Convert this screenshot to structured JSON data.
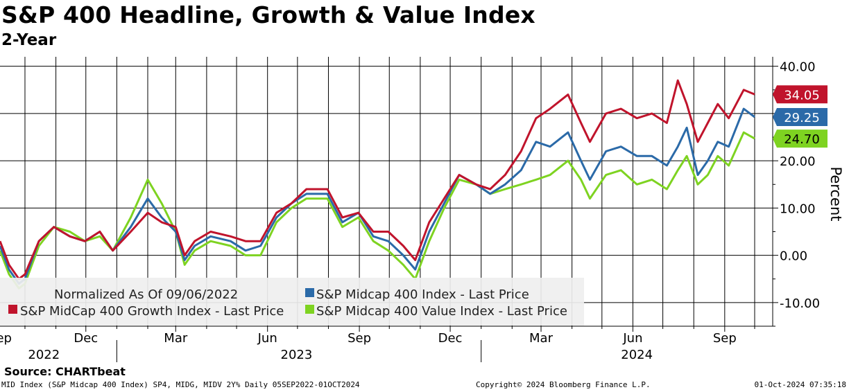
{
  "title": "S&P 400 Headline, Growth & Value Index",
  "subtitle": "2-Year",
  "source": "Source: CHARTbeat",
  "footer": {
    "left": "MID Index (S&P Midcap 400 Index) SP4, MIDG, MIDV 2Y% Daily 05SEP2022-01OCT2024",
    "middle": "Copyright© 2024 Bloomberg Finance L.P.",
    "right": "01-Oct-2024 07:35:18"
  },
  "colors": {
    "headline": "#2b6aa8",
    "growth": "#c0142c",
    "value": "#7ed321",
    "legend_bg": "#efefef",
    "grid": "#000000"
  },
  "chart_data": {
    "type": "line",
    "title": "S&P 400 Headline, Growth & Value Index",
    "subtitle": "2-Year",
    "ylabel": "Percent",
    "xlabel": "",
    "ylim": [
      -15,
      42
    ],
    "xlim": [
      "2022-09-06",
      "2024-10-01"
    ],
    "grid": true,
    "legend_placement": "bottom-left",
    "legend_note": "Normalized As Of 09/06/2022",
    "y_ticks": [
      -10,
      0,
      10,
      20,
      30,
      40
    ],
    "y_tick_labels": [
      "-10.00",
      "0.00",
      "10.00",
      "20.00",
      "30.00",
      "40.00"
    ],
    "x_tick_labels": [
      {
        "label": "Sep",
        "date": "2022-09-06"
      },
      {
        "label": "Dec",
        "date": "2022-12-01"
      },
      {
        "label": "Mar",
        "date": "2023-03-01"
      },
      {
        "label": "Jun",
        "date": "2023-06-01"
      },
      {
        "label": "Sep",
        "date": "2023-09-01"
      },
      {
        "label": "Dec",
        "date": "2023-12-01"
      },
      {
        "label": "Mar",
        "date": "2024-03-01"
      },
      {
        "label": "Jun",
        "date": "2024-06-01"
      },
      {
        "label": "Sep",
        "date": "2024-09-01"
      }
    ],
    "year_labels": [
      {
        "label": "2022",
        "date": "2022-10-20"
      },
      {
        "label": "2023",
        "date": "2023-06-30"
      },
      {
        "label": "2024",
        "date": "2024-06-05"
      }
    ],
    "year_separators": [
      "2023-01-01",
      "2024-01-01"
    ],
    "series": [
      {
        "key": "headline",
        "name": "S&P Midcap 400 Index - Last Price",
        "last_value": 29.25,
        "last_label": "29.25",
        "x": [
          "2022-09-06",
          "2022-09-15",
          "2022-09-25",
          "2022-10-01",
          "2022-10-15",
          "2022-10-30",
          "2022-11-15",
          "2022-11-30",
          "2022-12-15",
          "2022-12-28",
          "2023-01-15",
          "2023-02-01",
          "2023-02-15",
          "2023-03-01",
          "2023-03-10",
          "2023-03-20",
          "2023-04-05",
          "2023-04-25",
          "2023-05-10",
          "2023-05-25",
          "2023-06-10",
          "2023-06-25",
          "2023-07-10",
          "2023-07-31",
          "2023-08-15",
          "2023-08-31",
          "2023-09-15",
          "2023-09-30",
          "2023-10-15",
          "2023-10-27",
          "2023-11-10",
          "2023-11-25",
          "2023-12-10",
          "2023-12-27",
          "2024-01-10",
          "2024-01-25",
          "2024-02-10",
          "2024-02-25",
          "2024-03-10",
          "2024-03-28",
          "2024-04-10",
          "2024-04-19",
          "2024-05-05",
          "2024-05-20",
          "2024-06-05",
          "2024-06-20",
          "2024-07-05",
          "2024-07-16",
          "2024-07-25",
          "2024-08-05",
          "2024-08-15",
          "2024-08-25",
          "2024-09-05",
          "2024-09-20",
          "2024-10-01"
        ],
        "values": [
          2,
          -3,
          -6,
          -5,
          3,
          6,
          4,
          3,
          5,
          1,
          6,
          12,
          8,
          5,
          -1,
          2,
          4,
          3,
          1,
          2,
          8,
          11,
          13,
          13,
          7,
          9,
          4,
          3,
          0,
          -3,
          5,
          11,
          17,
          15,
          13,
          15,
          18,
          24,
          23,
          26,
          20,
          16,
          22,
          23,
          21,
          21,
          19,
          23,
          27,
          17,
          20,
          24,
          23,
          31,
          29.25
        ]
      },
      {
        "key": "growth",
        "name": "S&P MidCap 400 Growth Index - Last Price",
        "last_value": 34.05,
        "last_label": "34.05",
        "x": [
          "2022-09-06",
          "2022-09-15",
          "2022-09-25",
          "2022-10-01",
          "2022-10-15",
          "2022-10-30",
          "2022-11-15",
          "2022-11-30",
          "2022-12-15",
          "2022-12-28",
          "2023-01-15",
          "2023-02-01",
          "2023-02-15",
          "2023-03-01",
          "2023-03-10",
          "2023-03-20",
          "2023-04-05",
          "2023-04-25",
          "2023-05-10",
          "2023-05-25",
          "2023-06-10",
          "2023-06-25",
          "2023-07-10",
          "2023-07-31",
          "2023-08-15",
          "2023-08-31",
          "2023-09-15",
          "2023-09-30",
          "2023-10-15",
          "2023-10-27",
          "2023-11-10",
          "2023-11-25",
          "2023-12-10",
          "2023-12-27",
          "2024-01-10",
          "2024-01-25",
          "2024-02-10",
          "2024-02-25",
          "2024-03-10",
          "2024-03-28",
          "2024-04-10",
          "2024-04-19",
          "2024-05-05",
          "2024-05-20",
          "2024-06-05",
          "2024-06-20",
          "2024-07-05",
          "2024-07-16",
          "2024-07-25",
          "2024-08-05",
          "2024-08-15",
          "2024-08-25",
          "2024-09-05",
          "2024-09-20",
          "2024-10-01"
        ],
        "values": [
          3,
          -2,
          -5,
          -4,
          3,
          6,
          4,
          3,
          5,
          1,
          5,
          9,
          7,
          6,
          0,
          3,
          5,
          4,
          3,
          3,
          9,
          11,
          14,
          14,
          8,
          9,
          5,
          5,
          2,
          -1,
          7,
          12,
          17,
          15,
          14,
          17,
          22,
          29,
          31,
          34,
          28,
          24,
          30,
          31,
          29,
          30,
          28,
          37,
          32,
          24,
          28,
          32,
          29,
          35,
          34.05
        ]
      },
      {
        "key": "value",
        "name": "S&P Midcap 400 Value Index - Last Price",
        "last_value": 24.7,
        "last_label": "24.70",
        "x": [
          "2022-09-06",
          "2022-09-15",
          "2022-09-25",
          "2022-10-01",
          "2022-10-15",
          "2022-10-30",
          "2022-11-15",
          "2022-11-30",
          "2022-12-15",
          "2022-12-28",
          "2023-01-15",
          "2023-02-01",
          "2023-02-15",
          "2023-03-01",
          "2023-03-10",
          "2023-03-20",
          "2023-04-05",
          "2023-04-25",
          "2023-05-10",
          "2023-05-25",
          "2023-06-10",
          "2023-06-25",
          "2023-07-10",
          "2023-07-31",
          "2023-08-15",
          "2023-08-31",
          "2023-09-15",
          "2023-09-30",
          "2023-10-15",
          "2023-10-27",
          "2023-11-10",
          "2023-11-25",
          "2023-12-10",
          "2023-12-27",
          "2024-01-10",
          "2024-01-25",
          "2024-02-10",
          "2024-02-25",
          "2024-03-10",
          "2024-03-28",
          "2024-04-10",
          "2024-04-19",
          "2024-05-05",
          "2024-05-20",
          "2024-06-05",
          "2024-06-20",
          "2024-07-05",
          "2024-07-16",
          "2024-07-25",
          "2024-08-05",
          "2024-08-15",
          "2024-08-25",
          "2024-09-05",
          "2024-09-20",
          "2024-10-01"
        ],
        "values": [
          1,
          -4,
          -7,
          -6,
          2,
          6,
          5,
          3,
          4,
          1,
          8,
          16,
          11,
          5,
          -2,
          1,
          3,
          2,
          0,
          0,
          7,
          10,
          12,
          12,
          6,
          8,
          3,
          1,
          -2,
          -5,
          3,
          10,
          16,
          15,
          13,
          14,
          15,
          16,
          17,
          20,
          16,
          12,
          17,
          18,
          15,
          16,
          14,
          18,
          21,
          15,
          17,
          21,
          19,
          26,
          24.7
        ]
      }
    ]
  }
}
